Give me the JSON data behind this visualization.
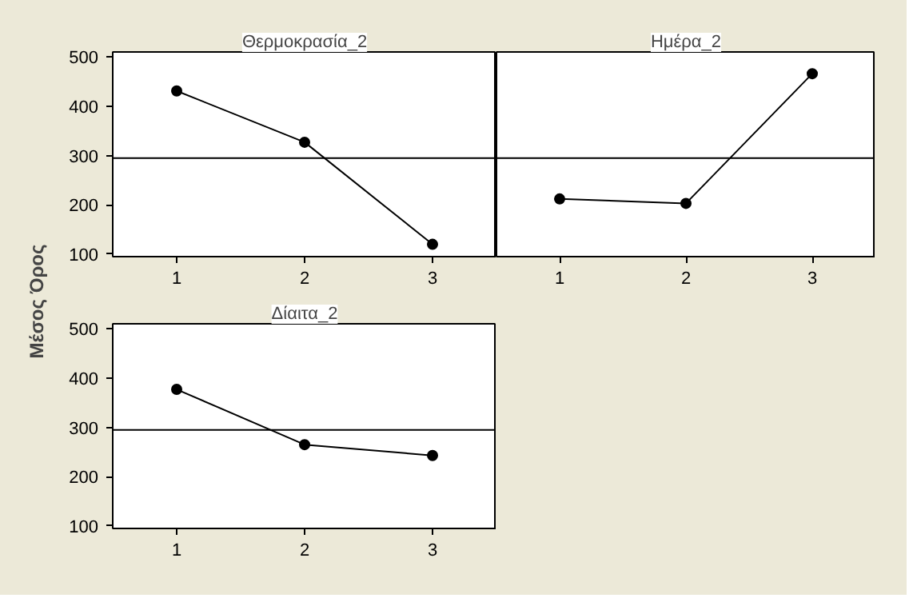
{
  "chart_data": [
    {
      "type": "line",
      "title": "Θερμοκρασία_2",
      "ylabel": "Μέσος Όρος",
      "x": [
        1,
        2,
        3
      ],
      "xlim": [
        0.5,
        3.5
      ],
      "xticks": [
        1,
        2,
        3
      ],
      "ylim": [
        95,
        510
      ],
      "yticks": [
        100,
        200,
        300,
        400,
        500
      ],
      "marker": "circle",
      "line_style": "solid",
      "grid": false,
      "series": [
        {
          "color": "#000000",
          "values": [
            431,
            327,
            120
          ]
        }
      ],
      "ref_lines": [
        {
          "axis": "y",
          "value": 295,
          "color": "#000000"
        }
      ]
    },
    {
      "type": "line",
      "title": "Ημέρα_2",
      "x": [
        1,
        2,
        3
      ],
      "xlim": [
        0.5,
        3.5
      ],
      "xticks": [
        1,
        2,
        3
      ],
      "ylim": [
        95,
        510
      ],
      "yticks": [
        100,
        200,
        300,
        400,
        500
      ],
      "tick_labels": "x",
      "marker": "circle",
      "line_style": "solid",
      "grid": false,
      "series": [
        {
          "color": "#000000",
          "values": [
            212,
            203,
            466
          ]
        }
      ],
      "ref_lines": [
        {
          "axis": "y",
          "value": 295,
          "color": "#000000"
        }
      ]
    },
    {
      "type": "line",
      "title": "Δίαιτα_2",
      "x": [
        1,
        2,
        3
      ],
      "xlim": [
        0.5,
        3.5
      ],
      "xticks": [
        1,
        2,
        3
      ],
      "ylim": [
        95,
        510
      ],
      "yticks": [
        100,
        200,
        300,
        400,
        500
      ],
      "marker": "circle",
      "line_style": "solid",
      "grid": false,
      "series": [
        {
          "color": "#000000",
          "values": [
            377,
            265,
            243
          ]
        }
      ],
      "ref_lines": [
        {
          "axis": "y",
          "value": 295,
          "color": "#000000"
        }
      ]
    }
  ]
}
